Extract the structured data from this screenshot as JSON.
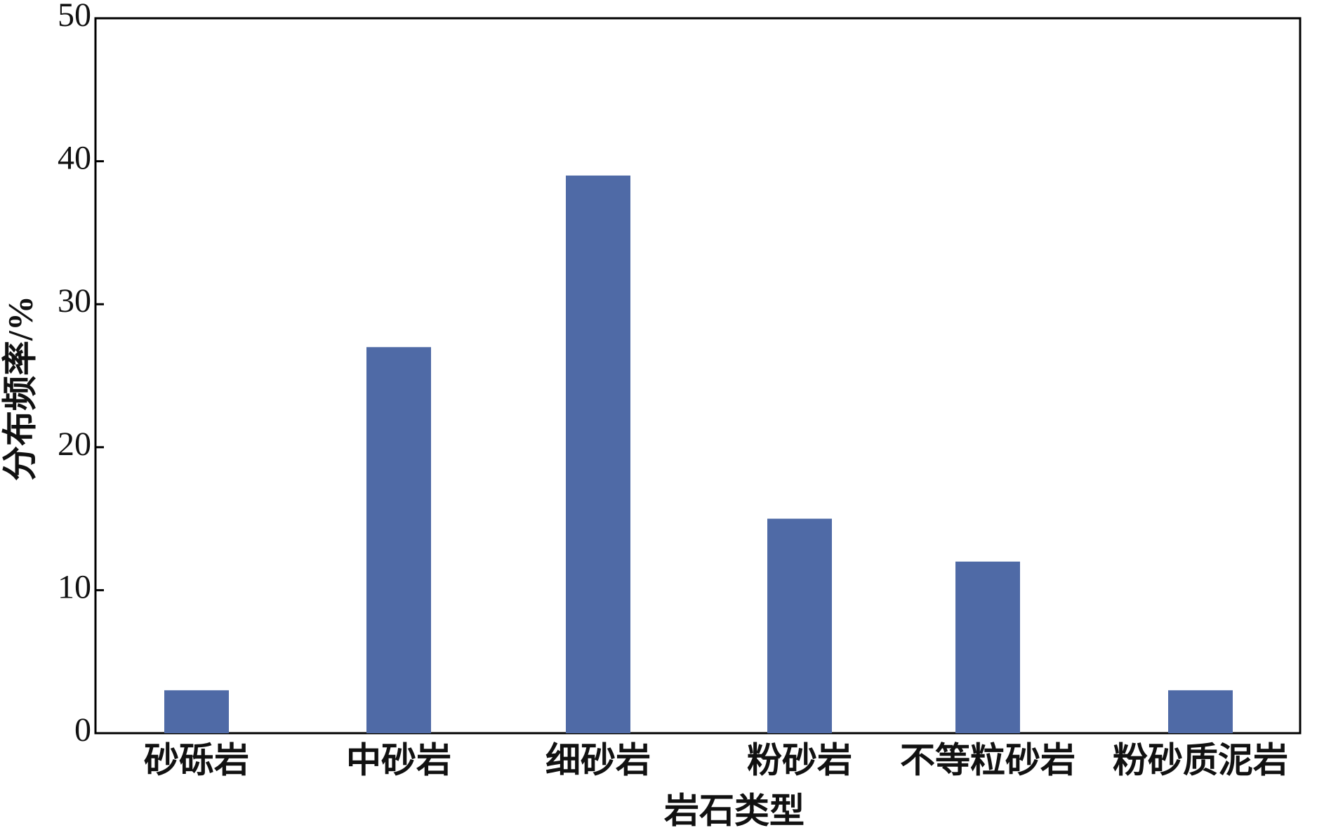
{
  "chart_data": {
    "type": "bar",
    "x_label": "岩石类型",
    "y_label": "分布频率/%",
    "categories": [
      "砂砾岩",
      "中砂岩",
      "细砂岩",
      "粉砂岩",
      "不等粒砂岩",
      "粉砂质泥岩"
    ],
    "values": [
      3,
      27,
      39,
      15,
      12,
      3
    ],
    "color": "#4f6aa6",
    "ylim": [
      0,
      50
    ],
    "yticks": [
      0,
      10,
      20,
      30,
      40,
      50
    ],
    "grid": false
  }
}
